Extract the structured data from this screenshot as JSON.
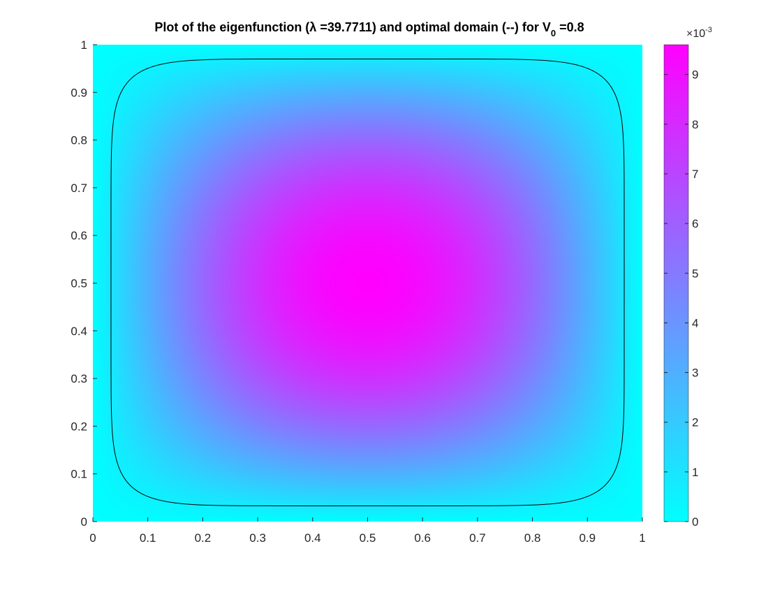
{
  "chart_data": {
    "type": "heatmap",
    "title": {
      "main": "Plot of the eigenfunction (λ =39.7711) and optimal domain (--) for V",
      "subscript": "0",
      "suffix": " =0.8"
    },
    "xlabel": "",
    "ylabel": "",
    "xlim": [
      0,
      1
    ],
    "ylim": [
      0,
      1
    ],
    "x_ticks": [
      "0",
      "0.1",
      "0.2",
      "0.3",
      "0.4",
      "0.5",
      "0.6",
      "0.7",
      "0.8",
      "0.9",
      "1"
    ],
    "y_ticks": [
      "0",
      "0.1",
      "0.2",
      "0.3",
      "0.4",
      "0.5",
      "0.6",
      "0.7",
      "0.8",
      "0.9",
      "1"
    ],
    "field": {
      "description_formula": "u(x,y) ~ max * sin(pi x) * sin(pi y)",
      "max_value": 0.0096,
      "peak": [
        0.5,
        0.5
      ]
    },
    "contour": {
      "label": "optimal domain",
      "shape": "superellipse",
      "x_range": [
        0.033,
        0.967
      ],
      "y_range": [
        0.033,
        0.97
      ]
    },
    "colorbar": {
      "min": 0,
      "max": 0.0096,
      "tick_values": [
        0,
        1,
        2,
        3,
        4,
        5,
        6,
        7,
        8,
        9
      ],
      "tick_labels": [
        "0",
        "1",
        "2",
        "3",
        "4",
        "5",
        "6",
        "7",
        "8",
        "9"
      ],
      "exponent_label": "×10",
      "exponent_power": "-3",
      "colormap": [
        "#00ffff",
        "#ff00ff"
      ]
    },
    "grid": false
  }
}
